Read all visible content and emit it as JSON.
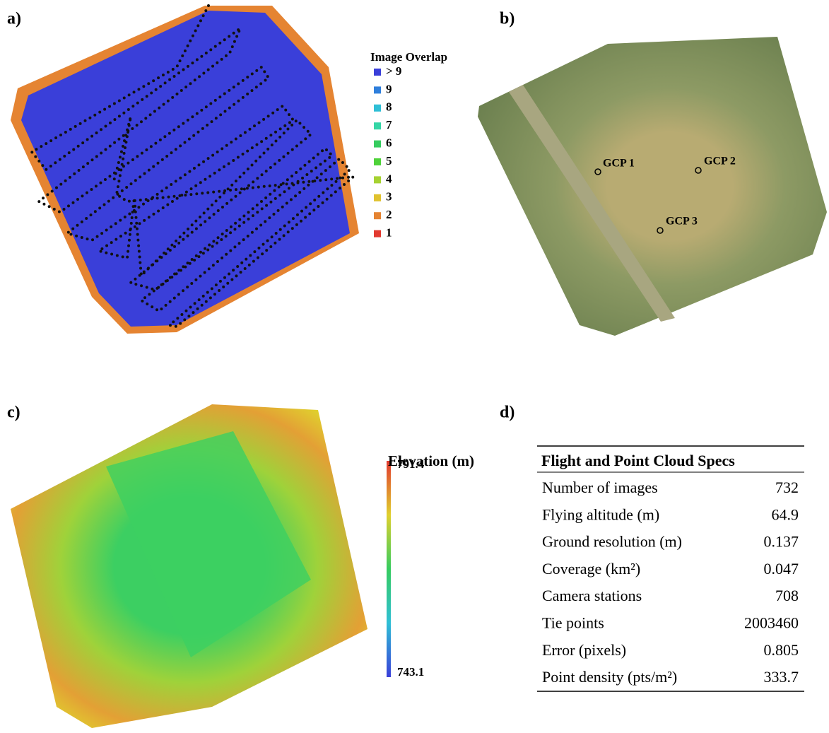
{
  "panels": {
    "a": "a)",
    "b": "b)",
    "c": "c)",
    "d": "d)"
  },
  "overlap_legend": {
    "title": "Image Overlap",
    "items": [
      {
        "label": "> 9",
        "color": "#3a3fd9"
      },
      {
        "label": "9",
        "color": "#2f7fdc"
      },
      {
        "label": "8",
        "color": "#2fbfd6"
      },
      {
        "label": "7",
        "color": "#35d6a6"
      },
      {
        "label": "6",
        "color": "#36cc5f"
      },
      {
        "label": "5",
        "color": "#4fd23a"
      },
      {
        "label": "4",
        "color": "#a6d232"
      },
      {
        "label": "3",
        "color": "#e0c22e"
      },
      {
        "label": "2",
        "color": "#e58432"
      },
      {
        "label": "1",
        "color": "#e23a30"
      }
    ]
  },
  "gcps": [
    "GCP 1",
    "GCP 2",
    "GCP 3"
  ],
  "elevation_legend": {
    "title": "Elevation (m)",
    "max": "791.4",
    "min": "743.1"
  },
  "table": {
    "title": "Flight and Point Cloud Specs",
    "rows": [
      [
        "Number of images",
        732
      ],
      [
        "Flying altitude (m)",
        64.9
      ],
      [
        "Ground resolution (m)",
        0.137
      ],
      [
        "Coverage (km²)",
        0.047
      ],
      [
        "Camera stations",
        708
      ],
      [
        "Tie points",
        2003460
      ],
      [
        "Error (pixels)",
        0.805
      ],
      [
        "Point density (pts/m²)",
        333.7
      ]
    ]
  }
}
